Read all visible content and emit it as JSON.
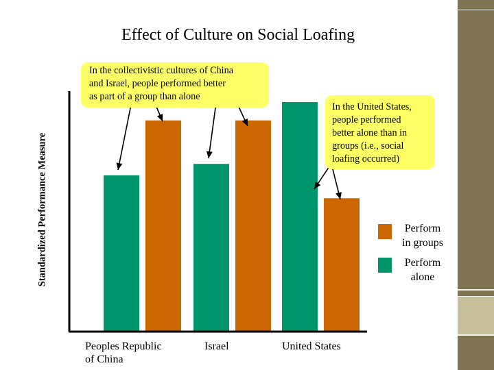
{
  "colors": {
    "groups": "#cc6600",
    "alone": "#00956a",
    "callout": "#ffff66",
    "accent_dark": "#7f7552",
    "accent_light": "#c6c09a"
  },
  "chart_data": {
    "type": "bar",
    "title": "Effect of Culture on Social Loafing",
    "xlabel": "",
    "ylabel": "Standardized Performance Measure",
    "categories": [
      "Peoples Republic of China",
      "Israel",
      "United States"
    ],
    "series": [
      {
        "name": "Perform alone",
        "color": "#00956a",
        "values": [
          68,
          73,
          100
        ]
      },
      {
        "name": "Perform in groups",
        "color": "#cc6600",
        "values": [
          92,
          92,
          58
        ]
      }
    ],
    "ylim": [
      0,
      100
    ],
    "grid": false,
    "legend_position": "right",
    "annotations": [
      "In the collectivistic cultures of China and Israel, people performed better as part of a group than alone",
      "In the United States, people performed better alone than in groups (i.e., social loafing occurred)"
    ]
  },
  "legend": {
    "groups_line1": "Perform",
    "groups_line2": "in groups",
    "alone_line1": "Perform",
    "alone_line2": "alone"
  },
  "ticks": {
    "china_line1": "Peoples Republic",
    "china_line2": "of China",
    "israel": "Israel",
    "us": "United States"
  },
  "callouts": {
    "left": [
      "In the collectivistic cultures of China",
      "and Israel, people performed better",
      "as part of a group than alone"
    ],
    "right": [
      "In the United States,",
      "people performed",
      "better alone than in",
      "groups (i.e., social",
      "loafing occurred)"
    ]
  }
}
